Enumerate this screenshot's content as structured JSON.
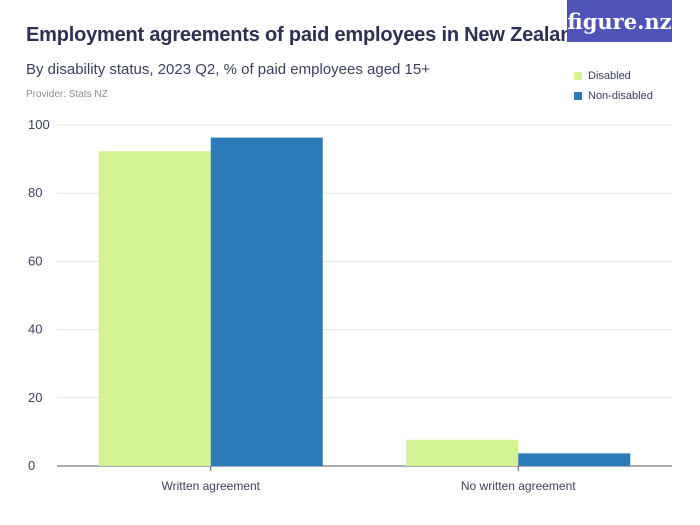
{
  "brand": {
    "logo_text": "figure.nz"
  },
  "chart_data": {
    "type": "bar",
    "title": "Employment agreements of paid employees in New Zealand",
    "subtitle": "By disability status, 2023 Q2, % of paid employees aged 15+",
    "provider": "Provider: Stats NZ",
    "categories": [
      "Written agreement",
      "No written agreement"
    ],
    "series": [
      {
        "name": "Disabled",
        "color": "#d4f294",
        "values": [
          92.3,
          7.7
        ]
      },
      {
        "name": "Non-disabled",
        "color": "#2a7bb8",
        "values": [
          96.3,
          3.7
        ]
      }
    ],
    "ylim": [
      0,
      100
    ],
    "yticks": [
      0,
      20,
      40,
      60,
      80,
      100
    ],
    "grid": true,
    "legend_position": "top-right"
  }
}
